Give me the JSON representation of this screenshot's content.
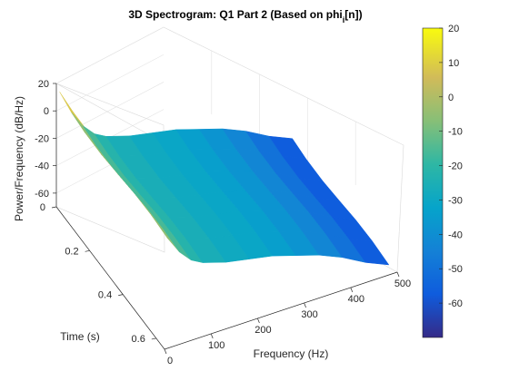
{
  "chart_data": {
    "type": "surface",
    "title": "3D Spectrogram: Q1 Part 2 (Based on phi",
    "title_subscript": "i",
    "title_suffix": "[n])",
    "xlabel": "Frequency (Hz)",
    "ylabel": "Time (s)",
    "zlabel": "Power/Frequency (dB/Hz)",
    "xlim": [
      0,
      500
    ],
    "ylim": [
      0,
      0.65
    ],
    "zlim": [
      -70,
      20
    ],
    "x_ticks": [
      "0",
      "100",
      "200",
      "300",
      "400",
      "500"
    ],
    "y_ticks": [
      "0",
      "0.2",
      "0.4",
      "0.6"
    ],
    "z_ticks": [
      "20",
      "0",
      "-20",
      "-40",
      "-60"
    ],
    "grid": true,
    "colormap": "parula",
    "colorbar": {
      "range": [
        -70,
        20
      ],
      "ticks": [
        "20",
        "10",
        "0",
        "-10",
        "-20",
        "-30",
        "-40",
        "-50",
        "-60"
      ]
    },
    "frequencies": [
      0,
      25,
      50,
      75,
      100,
      150,
      200,
      250,
      300,
      350,
      400,
      450,
      500
    ],
    "power_db": [
      17,
      0,
      -12,
      -20,
      -24,
      -28,
      -30,
      -32,
      -36,
      -40,
      -46,
      -54,
      -60
    ]
  }
}
